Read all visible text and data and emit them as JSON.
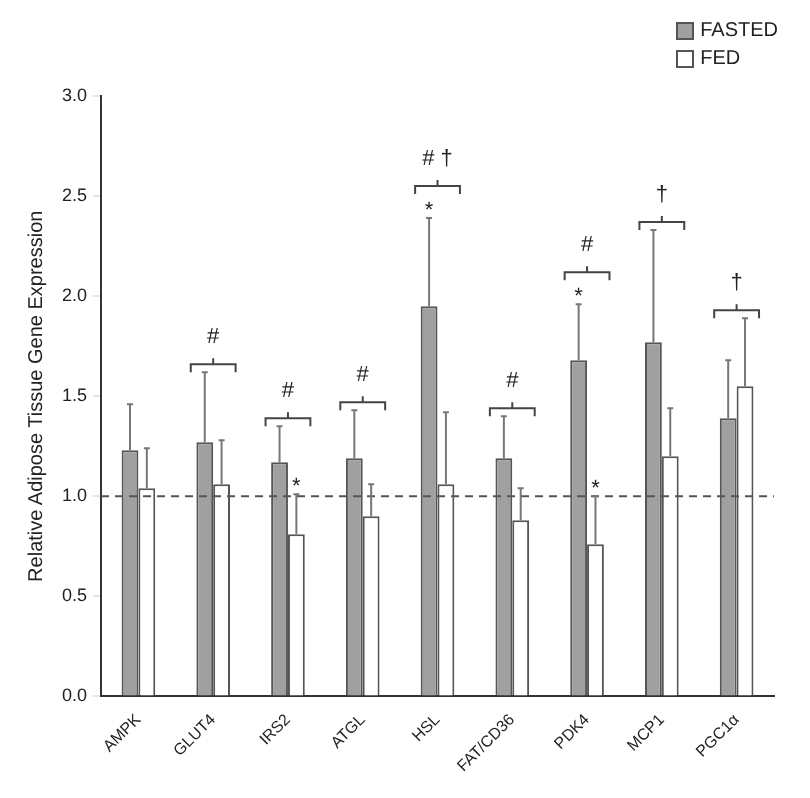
{
  "chart_data": {
    "type": "bar",
    "ylabel": "Relative Adipose Tissue Gene Expression",
    "categories": [
      "AMPK",
      "GLUT4",
      "IRS2",
      "ATGL",
      "HSL",
      "FAT/CD36",
      "PDK4",
      "MCP1",
      "PGC1α"
    ],
    "series": [
      {
        "name": "FASTED",
        "color": "#a0a0a0",
        "values": [
          1.23,
          1.27,
          1.17,
          1.19,
          1.95,
          1.19,
          1.68,
          1.77,
          1.39
        ],
        "errors": [
          [
            1.23,
            1.46
          ],
          [
            1.27,
            1.62
          ],
          [
            1.17,
            1.35
          ],
          [
            1.19,
            1.43
          ],
          [
            1.95,
            2.39
          ],
          [
            1.19,
            1.4
          ],
          [
            1.68,
            1.96
          ],
          [
            1.77,
            2.33
          ],
          [
            1.39,
            1.68
          ]
        ]
      },
      {
        "name": "FED",
        "color": "#ffffff",
        "values": [
          1.04,
          1.06,
          0.81,
          0.9,
          1.06,
          0.88,
          0.76,
          1.2,
          1.55
        ],
        "errors": [
          [
            1.04,
            1.24
          ],
          [
            1.06,
            1.28
          ],
          [
            0.81,
            1.01
          ],
          [
            0.9,
            1.06
          ],
          [
            1.06,
            1.42
          ],
          [
            0.88,
            1.04
          ],
          [
            0.76,
            1.0
          ],
          [
            1.2,
            1.44
          ],
          [
            1.55,
            1.89
          ]
        ]
      }
    ],
    "ylim": [
      0,
      3
    ],
    "yticks": [
      {
        "value": 0,
        "label": "0.0"
      },
      {
        "value": 0.5,
        "label": "0.5"
      },
      {
        "value": 1,
        "label": "1.0"
      },
      {
        "value": 1.5,
        "label": "1.5"
      },
      {
        "value": 2,
        "label": "2.0"
      },
      {
        "value": 2.5,
        "label": "2.5"
      },
      {
        "value": 3,
        "label": "3.0"
      }
    ],
    "ref_lines": [
      {
        "axis": "y",
        "value": 1,
        "line_style": "dashed",
        "color": "#555555"
      }
    ],
    "annotations": [
      {
        "text": "#",
        "x": "GLUT4",
        "y": 1.62
      },
      {
        "text": "#",
        "x": "IRS2",
        "y": 1.35
      },
      {
        "text": "*",
        "x": "IRS2",
        "y": 1.01
      },
      {
        "text": "#",
        "x": "ATGL",
        "y": 1.43
      },
      {
        "text": "# †",
        "x": "HSL",
        "y": 2.39
      },
      {
        "text": "*",
        "x": "HSL",
        "y": 2.39
      },
      {
        "text": "#",
        "x": "FAT/CD36",
        "y": 1.4
      },
      {
        "text": "#",
        "x": "PDK4",
        "y": 1.96
      },
      {
        "text": "*",
        "x": "PDK4",
        "y": 1.96
      },
      {
        "text": "*",
        "x": "PDK4",
        "y": 1.0
      },
      {
        "text": "†",
        "x": "MCP1",
        "y": 2.33
      },
      {
        "text": "†",
        "x": "PGC1α",
        "y": 1.89
      }
    ],
    "legend": "top right",
    "grid": false
  }
}
